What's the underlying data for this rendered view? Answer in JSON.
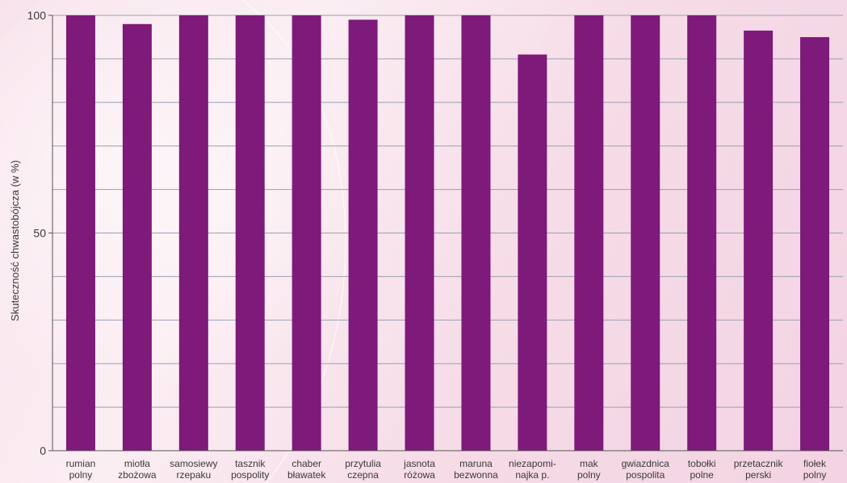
{
  "chart_data": {
    "type": "bar",
    "title": "",
    "xlabel": "",
    "ylabel": "Skuteczność chwastobójcza (w %)",
    "ylim": [
      0,
      100
    ],
    "yticks": [
      0,
      50,
      100
    ],
    "grid": true,
    "categories": [
      [
        "rumian",
        "polny"
      ],
      [
        "miotła",
        "zbożowa"
      ],
      [
        "samosiewy",
        "rzepaku"
      ],
      [
        "tasznik",
        "pospolity"
      ],
      [
        "chaber",
        "bławatek"
      ],
      [
        "przytulia",
        "czepna"
      ],
      [
        "jasnota",
        "różowa"
      ],
      [
        "maruna",
        "bezwonna"
      ],
      [
        "niezapomi-",
        "najka p."
      ],
      [
        "mak",
        "polny"
      ],
      [
        "gwiazdnica",
        "pospolita"
      ],
      [
        "tobołki",
        "polne"
      ],
      [
        "przetacznik",
        "perski"
      ],
      [
        "fiołek",
        "polny"
      ]
    ],
    "values": [
      100,
      98,
      100,
      100,
      100,
      99,
      100,
      100,
      91,
      100,
      100,
      100,
      96.5,
      95
    ],
    "colors": {
      "bar": "#7e1a7a",
      "grid": "#9aa0b4",
      "axis": "#555555"
    }
  }
}
